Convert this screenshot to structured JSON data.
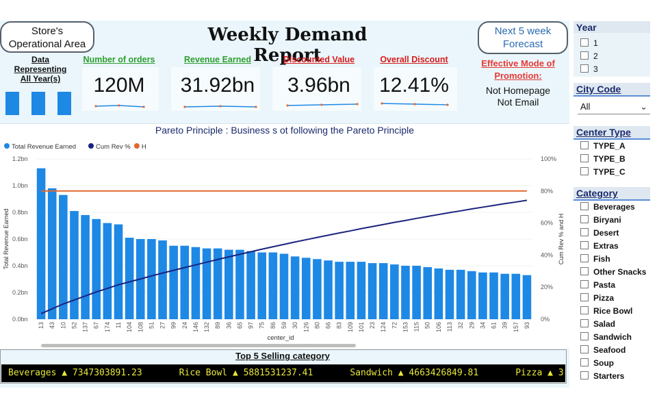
{
  "header": {
    "store_button": [
      "Store's",
      "Operational Area"
    ],
    "forecast_button": [
      "Next 5 week",
      "Forecast"
    ],
    "title": "Weekly Demand Report",
    "data_label": [
      "Data",
      "Representing",
      "All Year(s)"
    ]
  },
  "kpis": [
    {
      "title": "Number of orders",
      "value": "120M",
      "title_color": "#2e9e2e"
    },
    {
      "title": "Revenue Earned",
      "value": "31.92bn",
      "title_color": "#2e9e2e"
    },
    {
      "title": "Discounted Value",
      "value": "3.96bn",
      "title_color": "#d81b1b"
    },
    {
      "title": "Overall Discount",
      "value": "12.41%",
      "title_color": "#d81b1b"
    }
  ],
  "promotion": {
    "title": [
      "Effective Mode of",
      "Promotion:"
    ],
    "value": [
      "Not Homepage",
      "Not Email"
    ]
  },
  "chart_data": {
    "type": "bar",
    "title": "Pareto Principle : Business s ot following the Pareto Principle",
    "legend": [
      "Total Revenue Earned",
      "Cum Rev %",
      "H"
    ],
    "legend_placement": "top-left",
    "xlabel": "center_id",
    "ylabel": "Total Revenue Earned",
    "y2label": "Cum Rev % and H",
    "ylim": [
      0,
      1.2
    ],
    "y2lim": [
      0,
      100
    ],
    "y_ticks": [
      "0.0bn",
      "0.2bn",
      "0.4bn",
      "0.6bn",
      "0.8bn",
      "1.0bn",
      "1.2bn"
    ],
    "y2_ticks": [
      "0%",
      "20%",
      "40%",
      "60%",
      "80%",
      "100%"
    ],
    "categories": [
      "13",
      "43",
      "10",
      "52",
      "137",
      "67",
      "174",
      "11",
      "104",
      "108",
      "51",
      "27",
      "99",
      "24",
      "146",
      "132",
      "89",
      "36",
      "65",
      "97",
      "75",
      "86",
      "59",
      "30",
      "126",
      "80",
      "66",
      "83",
      "109",
      "101",
      "23",
      "124",
      "72",
      "153",
      "115",
      "50",
      "106",
      "113",
      "32",
      "29",
      "34",
      "61",
      "39",
      "157",
      "93"
    ],
    "series": [
      {
        "name": "Total Revenue Earned",
        "color": "#1e88e5",
        "values": [
          1.13,
          0.98,
          0.93,
          0.81,
          0.78,
          0.75,
          0.72,
          0.71,
          0.61,
          0.6,
          0.6,
          0.59,
          0.55,
          0.55,
          0.54,
          0.53,
          0.53,
          0.52,
          0.52,
          0.51,
          0.5,
          0.5,
          0.49,
          0.47,
          0.46,
          0.45,
          0.44,
          0.43,
          0.43,
          0.43,
          0.42,
          0.42,
          0.41,
          0.4,
          0.4,
          0.39,
          0.38,
          0.37,
          0.37,
          0.36,
          0.35,
          0.35,
          0.34,
          0.34,
          0.33
        ]
      },
      {
        "name": "Cum Rev %",
        "color": "#1a237e",
        "values": [
          3.5,
          6.5,
          9.5,
          12,
          14.5,
          17,
          19.2,
          21.5,
          23.3,
          25.1,
          27,
          28.8,
          30.5,
          32.2,
          33.9,
          35.6,
          37.3,
          38.9,
          40.5,
          42.1,
          43.7,
          45.2,
          46.7,
          48.2,
          49.6,
          51,
          52.4,
          53.8,
          55.1,
          56.5,
          57.8,
          59.1,
          60.4,
          61.6,
          62.9,
          64.1,
          65.3,
          66.5,
          67.6,
          68.8,
          69.9,
          71,
          72.1,
          73.1,
          74.2
        ]
      },
      {
        "name": "H",
        "color": "#e0692f",
        "values": [
          80,
          80,
          80,
          80,
          80,
          80,
          80,
          80,
          80,
          80,
          80,
          80,
          80,
          80,
          80,
          80,
          80,
          80,
          80,
          80,
          80,
          80,
          80,
          80,
          80,
          80,
          80,
          80,
          80,
          80,
          80,
          80,
          80,
          80,
          80,
          80,
          80,
          80,
          80,
          80,
          80,
          80,
          80,
          80,
          80
        ]
      }
    ]
  },
  "ticker": {
    "title": "Top 5 Selling category",
    "items": [
      "Beverages ▲ 7347303891.23",
      "Rice Bowl ▲ 5881531237.41",
      "Sandwich ▲ 4663426849.81",
      "Pizza ▲ 3"
    ]
  },
  "slicers": {
    "year": {
      "title": "Year",
      "options": [
        "1",
        "2",
        "3"
      ]
    },
    "city": {
      "title": "City Code",
      "selected": "All"
    },
    "center_type": {
      "title": "Center Type",
      "options": [
        "TYPE_A",
        "TYPE_B",
        "TYPE_C"
      ]
    },
    "category": {
      "title": "Category",
      "options": [
        "Beverages",
        "Biryani",
        "Desert",
        "Extras",
        "Fish",
        "Other Snacks",
        "Pasta",
        "Pizza",
        "Rice Bowl",
        "Salad",
        "Sandwich",
        "Seafood",
        "Soup",
        "Starters"
      ]
    }
  },
  "colors": {
    "accent": "#1e88e5",
    "cum_line": "#1a237e",
    "h_line": "#e0692f",
    "ticker_text": "#e8e83a"
  }
}
